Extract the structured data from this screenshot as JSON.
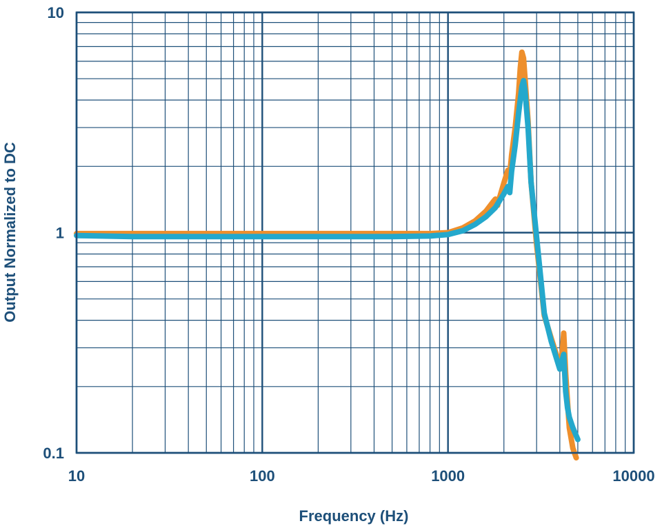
{
  "chart_data": {
    "type": "line",
    "xlabel": "Frequency (Hz)",
    "ylabel": "Output Normalized to DC",
    "x_scale": "log",
    "y_scale": "log",
    "xlim": [
      10,
      10000
    ],
    "ylim": [
      0.1,
      10
    ],
    "x_ticks": [
      10,
      100,
      1000,
      10000
    ],
    "x_tick_labels": [
      "10",
      "100",
      "1000",
      "10000"
    ],
    "y_ticks": [
      0.1,
      1,
      10
    ],
    "y_tick_labels": [
      "0.1",
      "1",
      "10"
    ],
    "grid": true,
    "legend": "none",
    "colors": {
      "grid": "#1d4f79",
      "axis_text": "#1d4f79",
      "series_orange": "#ee8f2c",
      "series_blue": "#24a8cc"
    },
    "series": [
      {
        "color": "#ee8f2c",
        "x": [
          10,
          20,
          50,
          100,
          200,
          300,
          500,
          800,
          1000,
          1200,
          1400,
          1600,
          1750,
          1800,
          1850,
          1900,
          2000,
          2100,
          2150,
          2200,
          2300,
          2400,
          2450,
          2500,
          2550,
          2600,
          2700,
          2800,
          3000,
          3300,
          3600,
          4000,
          4100,
          4200,
          4300,
          4400,
          4500,
          4700,
          4900
        ],
        "y": [
          0.99,
          0.99,
          0.99,
          0.99,
          0.99,
          0.99,
          0.99,
          0.99,
          1.0,
          1.05,
          1.13,
          1.25,
          1.38,
          1.42,
          1.33,
          1.45,
          1.68,
          1.92,
          1.82,
          2.25,
          3.0,
          4.3,
          5.6,
          6.6,
          6.2,
          5.0,
          3.2,
          1.7,
          0.88,
          0.42,
          0.33,
          0.25,
          0.27,
          0.35,
          0.23,
          0.17,
          0.13,
          0.105,
          0.095
        ]
      },
      {
        "color": "#24a8cc",
        "x": [
          10,
          20,
          50,
          100,
          200,
          300,
          500,
          800,
          1000,
          1200,
          1400,
          1600,
          1800,
          1900,
          2000,
          2100,
          2150,
          2200,
          2300,
          2400,
          2500,
          2550,
          2600,
          2700,
          2800,
          3000,
          3300,
          3600,
          4000,
          4100,
          4200,
          4300,
          4400,
          4500,
          4700,
          5000
        ],
        "y": [
          0.97,
          0.96,
          0.96,
          0.96,
          0.96,
          0.96,
          0.96,
          0.965,
          0.98,
          1.02,
          1.09,
          1.18,
          1.3,
          1.4,
          1.5,
          1.62,
          1.52,
          1.9,
          2.5,
          3.5,
          4.6,
          4.9,
          4.4,
          3.0,
          1.7,
          0.95,
          0.43,
          0.32,
          0.24,
          0.26,
          0.28,
          0.19,
          0.16,
          0.145,
          0.13,
          0.115
        ]
      }
    ]
  }
}
